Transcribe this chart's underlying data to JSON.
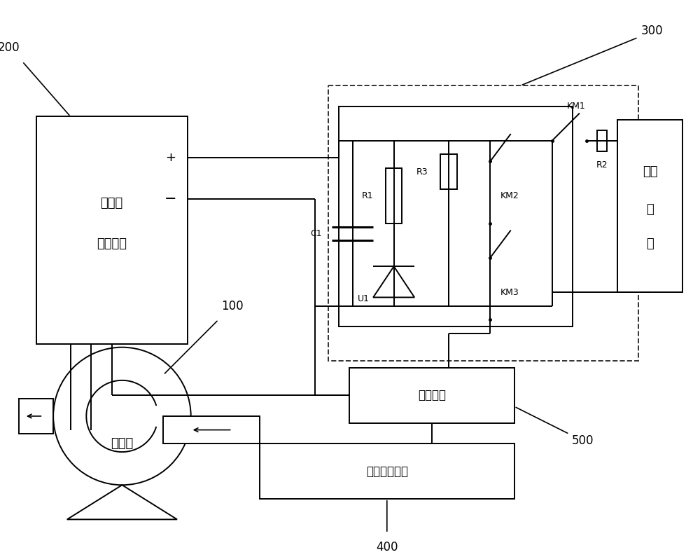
{
  "bg_color": "#ffffff",
  "line_color": "#000000",
  "fig_width": 10.0,
  "fig_height": 7.95,
  "labels": {
    "unit200_line1": "空压机",
    "unit200_line2": "控制单元",
    "unit100": "空压机",
    "unit_master": "总控单元",
    "unit400": "流量测量电路",
    "unit_ext_line1": "外部",
    "unit_ext_line2": "电",
    "unit_ext_line3": "源",
    "num100": "100",
    "num200": "200",
    "num300": "300",
    "num400": "400",
    "num500": "500",
    "km1": "KM1",
    "km2": "KM2",
    "km3": "KM3",
    "r1": "R1",
    "r2": "R2",
    "r3": "R3",
    "c1": "C1",
    "u1": "U1",
    "plus": "+",
    "minus": "−"
  }
}
